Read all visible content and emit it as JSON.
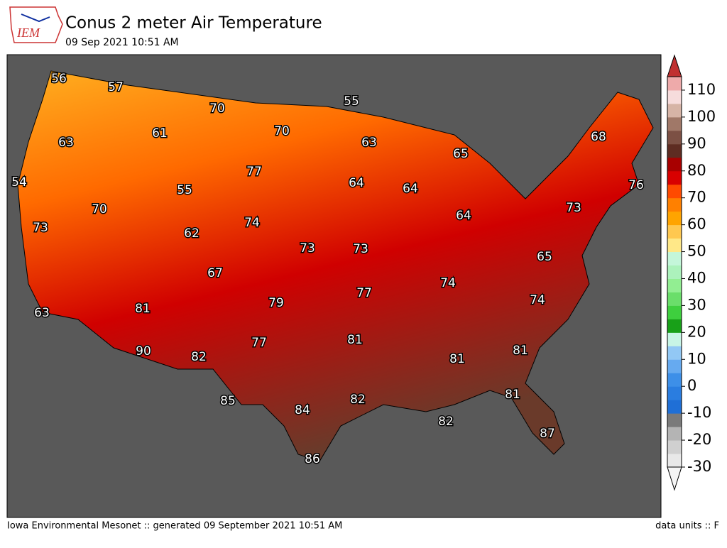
{
  "header": {
    "logo_text": "IEM",
    "title": "Conus 2 meter Air Temperature",
    "subtitle": "09 Sep 2021 10:51 AM"
  },
  "contour_labels": [
    56,
    57,
    70,
    55,
    70,
    63,
    61,
    68,
    63,
    65,
    77,
    54,
    55,
    64,
    64,
    76,
    70,
    73,
    64,
    73,
    74,
    62,
    73,
    73,
    65,
    67,
    74,
    77,
    79,
    74,
    81,
    63,
    81,
    77,
    81,
    90,
    82,
    81,
    81,
    85,
    82,
    84,
    82,
    87,
    86
  ],
  "colorbar": {
    "levels": [
      -30,
      -25,
      -20,
      -15,
      -10,
      -5,
      0,
      5,
      10,
      15,
      20,
      25,
      30,
      35,
      40,
      45,
      50,
      55,
      60,
      65,
      70,
      75,
      80,
      85,
      90,
      95,
      100,
      105,
      110,
      115
    ],
    "colors": [
      "#e8e8e8",
      "#d0d0d0",
      "#b4b4b4",
      "#7a7a7a",
      "#1f6fd6",
      "#2a7de0",
      "#3d8fe8",
      "#66aaf0",
      "#92c8f5",
      "#c8f5e6",
      "#18a018",
      "#3ecf3e",
      "#6ade6a",
      "#92ee92",
      "#acf2bc",
      "#c4f6da",
      "#ffe888",
      "#ffc850",
      "#ffa400",
      "#ff8000",
      "#ff4a00",
      "#d80000",
      "#a80000",
      "#5e2c22",
      "#7c5044",
      "#a07868",
      "#d6b4a6",
      "#f6dcdc",
      "#eeaaaa",
      "#e07070"
    ],
    "under_color": "#f4f4f4",
    "over_color": "#c03030",
    "ticks": [
      -30,
      -20,
      -10,
      0,
      10,
      20,
      30,
      40,
      50,
      60,
      70,
      80,
      90,
      100,
      110
    ]
  },
  "footer": {
    "left": "Iowa Environmental Mesonet :: generated 09 September 2021 10:51 AM",
    "right": "data units :: F"
  }
}
